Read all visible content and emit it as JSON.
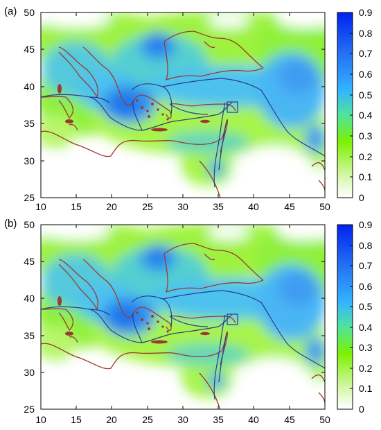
{
  "panels": [
    {
      "label": "(a)",
      "x_ticks": [
        "10",
        "15",
        "20",
        "25",
        "30",
        "35",
        "40",
        "45",
        "50"
      ],
      "y_ticks": [
        "25",
        "30",
        "35",
        "40",
        "45",
        "50"
      ],
      "colorbar_ticks": [
        "0",
        "0.1",
        "0.2",
        "0.3",
        "0.4",
        "0.5",
        "0.6",
        "0.7",
        "0.8",
        "0.9"
      ]
    },
    {
      "label": "(b)",
      "x_ticks": [
        "10",
        "15",
        "20",
        "25",
        "30",
        "35",
        "40",
        "45",
        "50"
      ],
      "y_ticks": [
        "25",
        "30",
        "35",
        "40",
        "45",
        "50"
      ],
      "colorbar_ticks": [
        "0",
        "0.1",
        "0.2",
        "0.3",
        "0.4",
        "0.5",
        "0.6",
        "0.7",
        "0.8",
        "0.9"
      ]
    }
  ],
  "map": {
    "lon_range": [
      10,
      50
    ],
    "lat_range": [
      25,
      50
    ],
    "value_range": [
      0,
      0.9
    ],
    "colormap": [
      "#ffffff",
      "#7cf200",
      "#33b4ff",
      "#0022f0"
    ],
    "coastline_color": "#9b3b2f",
    "fault_color": "#2b3a8c"
  }
}
